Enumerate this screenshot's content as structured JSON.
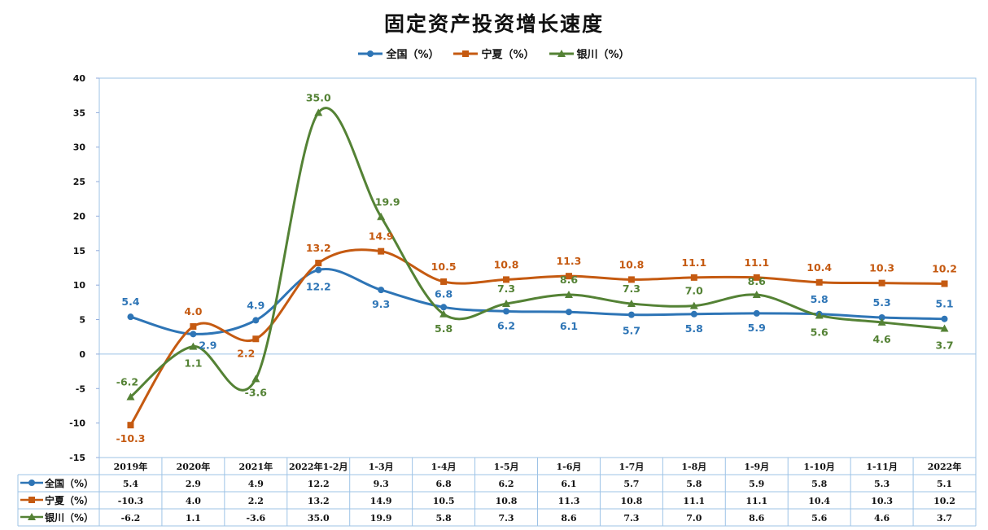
{
  "title": "固定资产投资增长速度",
  "chart_data": {
    "type": "line",
    "title": "固定资产投资增长速度",
    "categories": [
      "2019年",
      "2020年",
      "2021年",
      "2022年1-2月",
      "1-3月",
      "1-4月",
      "1-5月",
      "1-6月",
      "1-7月",
      "1-8月",
      "1-9月",
      "1-10月",
      "1-11月",
      "2022年"
    ],
    "ylim": [
      -15,
      40
    ],
    "yticks": [
      -15,
      -10,
      -5,
      0,
      5,
      10,
      15,
      20,
      25,
      30,
      35,
      40
    ],
    "grid": false,
    "legend_position": "top-center",
    "data_table": true,
    "series": [
      {
        "name": "全国（%）",
        "color": "#2E75B6",
        "marker": "circle",
        "values": [
          5.4,
          2.9,
          4.9,
          12.2,
          9.3,
          6.8,
          6.2,
          6.1,
          5.7,
          5.8,
          5.9,
          5.8,
          5.3,
          5.1
        ],
        "labels": [
          "5.4",
          "2.9",
          "4.9",
          "12.2",
          "9.3",
          "6.8",
          "6.2",
          "6.1",
          "5.7",
          "5.8",
          "5.9",
          "5.8",
          "5.3",
          "5.1"
        ]
      },
      {
        "name": "宁夏（%）",
        "color": "#C55A11",
        "marker": "square",
        "values": [
          -10.3,
          4.0,
          2.2,
          13.2,
          14.9,
          10.5,
          10.8,
          11.3,
          10.8,
          11.1,
          11.1,
          10.4,
          10.3,
          10.2
        ],
        "labels": [
          "-10.3",
          "4.0",
          "2.2",
          "13.2",
          "14.9",
          "10.5",
          "10.8",
          "11.3",
          "10.8",
          "11.1",
          "11.1",
          "10.4",
          "10.3",
          "10.2"
        ]
      },
      {
        "name": "银川（%）",
        "color": "#548235",
        "marker": "triangle",
        "values": [
          -6.2,
          1.1,
          -3.6,
          35.0,
          19.9,
          5.8,
          7.3,
          8.6,
          7.3,
          7.0,
          8.6,
          5.6,
          4.6,
          3.7
        ],
        "labels": [
          "-6.2",
          "1.1",
          "-3.6",
          "35.0",
          "19.9",
          "5.8",
          "7.3",
          "8.6",
          "7.3",
          "7.0",
          "8.6",
          "5.6",
          "4.6",
          "3.7"
        ]
      }
    ]
  }
}
